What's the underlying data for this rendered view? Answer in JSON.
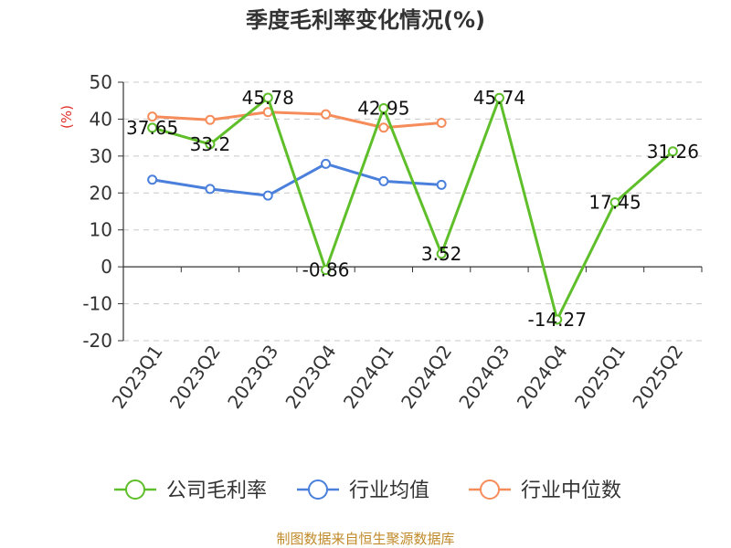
{
  "chart_data": {
    "type": "line",
    "title": "季度毛利率变化情况(%)",
    "ylabel": "(%)",
    "ylim": [
      -20,
      50
    ],
    "yticks": [
      50,
      40,
      30,
      20,
      10,
      0,
      -10,
      -20
    ],
    "grid": true,
    "legend_position": "bottom",
    "categories": [
      "2023Q1",
      "2023Q2",
      "2023Q3",
      "2023Q4",
      "2024Q1",
      "2024Q2",
      "2024Q3",
      "2024Q4",
      "2025Q1",
      "2025Q2"
    ],
    "series": [
      {
        "name": "公司毛利率",
        "color": "#5fbf2a",
        "values": [
          37.65,
          33.2,
          45.78,
          -0.86,
          42.95,
          3.52,
          45.74,
          -14.27,
          17.45,
          31.26
        ],
        "labels": [
          "37.65",
          "33.2",
          "45.78",
          "-0.86",
          "42.95",
          "3.52",
          "45.74",
          "-14.27",
          "17.45",
          "31.26"
        ]
      },
      {
        "name": "行业均值",
        "color": "#4a7fdb",
        "values": [
          23.6,
          21.1,
          19.3,
          27.9,
          23.2,
          22.2,
          null,
          null,
          null,
          null
        ]
      },
      {
        "name": "行业中位数",
        "color": "#f58c5a",
        "values": [
          40.7,
          39.8,
          41.9,
          41.3,
          37.7,
          39.0,
          null,
          null,
          null,
          null
        ]
      }
    ],
    "source": "制图数据来自恒生聚源数据库"
  }
}
